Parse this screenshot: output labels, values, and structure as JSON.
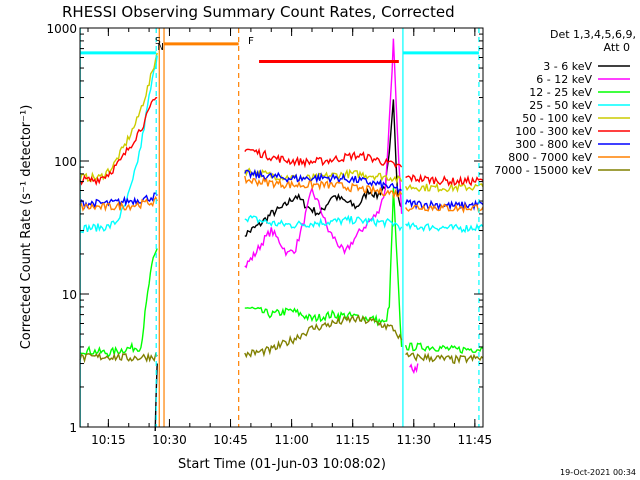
{
  "chart_data": {
    "type": "line",
    "title": "RHESSI Observing Summary Count Rates, Corrected",
    "xlabel": "Start Time (01-Jun-03 10:08:02)",
    "ylabel": "Corrected Count Rate (s⁻¹ detector⁻¹)",
    "y_scale": "log",
    "ylim": [
      1,
      1000
    ],
    "xlim": [
      "10:08:02",
      "11:47:00"
    ],
    "x_ticks": [
      "10:15",
      "10:30",
      "10:45",
      "11:00",
      "11:15",
      "11:30",
      "11:45"
    ],
    "y_ticks": [
      "1",
      "10",
      "100",
      "1000"
    ],
    "grid": false,
    "legend_position": "top-right outside",
    "legend_header": [
      "Det 1,3,4,5,6,9,",
      "Att 0"
    ],
    "footer_date": "19-Oct-2021 00:34",
    "series": [
      {
        "name": "3 - 6 keV",
        "color": "#000000",
        "segments": [
          [
            [
              "10:26:30",
              1.0
            ],
            [
              "10:27:00",
              3.0
            ]
          ],
          [
            [
              "10:48:30",
              28
            ],
            [
              "10:52:00",
              33
            ],
            [
              "10:55:00",
              40
            ],
            [
              "10:58:00",
              45
            ],
            [
              "11:01:00",
              55
            ],
            [
              "11:04:00",
              45
            ],
            [
              "11:07:00",
              40
            ],
            [
              "11:10:00",
              55
            ],
            [
              "11:13:00",
              50
            ],
            [
              "11:16:00",
              45
            ],
            [
              "11:19:00",
              60
            ],
            [
              "11:21:00",
              55
            ],
            [
              "11:23:00",
              65
            ],
            [
              "11:24:00",
              110
            ],
            [
              "11:25:00",
              280
            ],
            [
              "11:26:00",
              60
            ],
            [
              "11:27:00",
              45
            ]
          ]
        ]
      },
      {
        "name": "6 - 12 keV",
        "color": "#ff00ff",
        "segments": [
          [
            [
              "10:48:30",
              16
            ],
            [
              "10:51:00",
              20
            ],
            [
              "10:53:00",
              25
            ],
            [
              "10:55:00",
              30
            ],
            [
              "10:57:00",
              25
            ],
            [
              "10:59:00",
              20
            ],
            [
              "11:01:00",
              22
            ],
            [
              "11:03:00",
              35
            ],
            [
              "11:05:00",
              60
            ],
            [
              "11:07:00",
              45
            ],
            [
              "11:09:00",
              30
            ],
            [
              "11:11:00",
              25
            ],
            [
              "11:13:00",
              20
            ],
            [
              "11:15:00",
              25
            ],
            [
              "11:17:00",
              30
            ],
            [
              "11:19:00",
              35
            ],
            [
              "11:21:00",
              40
            ],
            [
              "11:23:00",
              60
            ],
            [
              "11:24:00",
              200
            ],
            [
              "11:25:00",
              800
            ],
            [
              "11:26:00",
              150
            ],
            [
              "11:27:00",
              40
            ]
          ],
          [
            [
              "11:29:00",
              3.0
            ],
            [
              "11:30:00",
              2.5
            ],
            [
              "11:31:00",
              3.0
            ]
          ]
        ]
      },
      {
        "name": "12 - 25 keV",
        "color": "#00ff00",
        "segments": [
          [
            [
              "10:08:02",
              3.8
            ],
            [
              "10:15:00",
              3.6
            ],
            [
              "10:20:00",
              3.9
            ],
            [
              "10:23:00",
              4.0
            ],
            [
              "10:24:00",
              7
            ],
            [
              "10:25:00",
              12
            ],
            [
              "10:26:00",
              18
            ],
            [
              "10:27:00",
              22
            ]
          ],
          [
            [
              "10:48:30",
              8
            ],
            [
              "10:55:00",
              7
            ],
            [
              "11:00:00",
              7.5
            ],
            [
              "11:05:00",
              6.5
            ],
            [
              "11:10:00",
              7
            ],
            [
              "11:15:00",
              6.8
            ],
            [
              "11:20:00",
              6.5
            ],
            [
              "11:23:00",
              6
            ],
            [
              "11:24:00",
              8
            ],
            [
              "11:25:00",
              60
            ],
            [
              "11:26:00",
              15
            ],
            [
              "11:27:00",
              4
            ]
          ],
          [
            [
              "11:28:00",
              4.0
            ],
            [
              "11:35:00",
              4.0
            ],
            [
              "11:40:00",
              3.8
            ],
            [
              "11:47:00",
              3.9
            ]
          ]
        ]
      },
      {
        "name": "25 - 50 keV",
        "color": "#00ffff",
        "segments": [
          [
            [
              "10:08:02",
              31
            ],
            [
              "10:15:00",
              32
            ],
            [
              "10:17:00",
              35
            ],
            [
              "10:19:00",
              45
            ],
            [
              "10:21:00",
              70
            ],
            [
              "10:23:00",
              130
            ],
            [
              "10:25:00",
              300
            ],
            [
              "10:27:00",
              620
            ]
          ],
          [
            [
              "10:48:30",
              38
            ],
            [
              "10:55:00",
              34
            ],
            [
              "11:00:00",
              33
            ],
            [
              "11:05:00",
              34
            ],
            [
              "11:10:00",
              35
            ],
            [
              "11:15:00",
              36
            ],
            [
              "11:20:00",
              35
            ],
            [
              "11:25:00",
              34
            ],
            [
              "11:27:00",
              32
            ]
          ],
          [
            [
              "11:28:00",
              32
            ],
            [
              "11:35:00",
              32
            ],
            [
              "11:40:00",
              31
            ],
            [
              "11:47:00",
              32
            ]
          ]
        ]
      },
      {
        "name": "50 - 100 keV",
        "color": "#cccc00",
        "segments": [
          [
            [
              "10:08:02",
              75
            ],
            [
              "10:13:00",
              75
            ],
            [
              "10:16:00",
              90
            ],
            [
              "10:19:00",
              130
            ],
            [
              "10:22:00",
              200
            ],
            [
              "10:25:00",
              380
            ],
            [
              "10:27:00",
              650
            ]
          ],
          [
            [
              "10:48:30",
              85
            ],
            [
              "10:55:00",
              78
            ],
            [
              "11:00:00",
              75
            ],
            [
              "11:05:00",
              74
            ],
            [
              "11:10:00",
              78
            ],
            [
              "11:15:00",
              80
            ],
            [
              "11:20:00",
              78
            ],
            [
              "11:25:00",
              75
            ],
            [
              "11:27:00",
              70
            ]
          ],
          [
            [
              "11:28:00",
              64
            ],
            [
              "11:35:00",
              63
            ],
            [
              "11:40:00",
              63
            ],
            [
              "11:47:00",
              64
            ]
          ]
        ]
      },
      {
        "name": "100 - 300 keV",
        "color": "#ff0000",
        "segments": [
          [
            [
              "10:08:02",
              72
            ],
            [
              "10:12:00",
              72
            ],
            [
              "10:15:00",
              80
            ],
            [
              "10:18:00",
              100
            ],
            [
              "10:21:00",
              140
            ],
            [
              "10:24:00",
              200
            ],
            [
              "10:26:00",
              280
            ],
            [
              "10:27:00",
              300
            ]
          ],
          [
            [
              "10:48:30",
              125
            ],
            [
              "10:52:00",
              115
            ],
            [
              "10:56:00",
              105
            ],
            [
              "11:00:00",
              100
            ],
            [
              "11:04:00",
              98
            ],
            [
              "11:08:00",
              100
            ],
            [
              "11:12:00",
              105
            ],
            [
              "11:15:00",
              110
            ],
            [
              "11:18:00",
              108
            ],
            [
              "11:21:00",
              102
            ],
            [
              "11:24:00",
              95
            ],
            [
              "11:27:00",
              90
            ]
          ],
          [
            [
              "11:28:00",
              75
            ],
            [
              "11:35:00",
              72
            ],
            [
              "11:40:00",
              70
            ],
            [
              "11:47:00",
              71
            ]
          ]
        ]
      },
      {
        "name": "300 - 800 keV",
        "color": "#0000ff",
        "segments": [
          [
            [
              "10:08:02",
              48
            ],
            [
              "10:15:00",
              48
            ],
            [
              "10:20:00",
              50
            ],
            [
              "10:24:00",
              52
            ],
            [
              "10:27:00",
              55
            ]
          ],
          [
            [
              "10:48:30",
              80
            ],
            [
              "10:52:00",
              78
            ],
            [
              "10:56:00",
              76
            ],
            [
              "11:00:00",
              74
            ],
            [
              "11:04:00",
              74
            ],
            [
              "11:08:00",
              75
            ],
            [
              "11:12:00",
              74
            ],
            [
              "11:16:00",
              72
            ],
            [
              "11:20:00",
              68
            ],
            [
              "11:24:00",
              64
            ],
            [
              "11:27:00",
              60
            ]
          ],
          [
            [
              "11:28:00",
              48
            ],
            [
              "11:35:00",
              47
            ],
            [
              "11:40:00",
              46
            ],
            [
              "11:47:00",
              47
            ]
          ]
        ]
      },
      {
        "name": "800 - 7000 keV",
        "color": "#ff8000",
        "segments": [
          [
            [
              "10:08:02",
              45
            ],
            [
              "10:15:00",
              45
            ],
            [
              "10:20:00",
              46
            ],
            [
              "10:24:00",
              48
            ],
            [
              "10:27:00",
              50
            ]
          ],
          [
            [
              "10:48:30",
              72
            ],
            [
              "10:52:00",
              70
            ],
            [
              "10:56:00",
              68
            ],
            [
              "11:00:00",
              66
            ],
            [
              "11:04:00",
              66
            ],
            [
              "11:08:00",
              66
            ],
            [
              "11:12:00",
              65
            ],
            [
              "11:16:00",
              62
            ],
            [
              "11:20:00",
              60
            ],
            [
              "11:24:00",
              58
            ],
            [
              "11:27:00",
              56
            ]
          ],
          [
            [
              "11:28:00",
              45
            ],
            [
              "11:35:00",
              45
            ],
            [
              "11:40:00",
              44
            ],
            [
              "11:47:00",
              45
            ]
          ]
        ]
      },
      {
        "name": "7000 - 15000 keV",
        "color": "#808000",
        "segments": [
          [
            [
              "10:08:02",
              3.3
            ],
            [
              "10:15:00",
              3.4
            ],
            [
              "10:20:00",
              3.3
            ],
            [
              "10:27:00",
              3.4
            ]
          ],
          [
            [
              "10:48:30",
              3.5
            ],
            [
              "10:55:00",
              3.8
            ],
            [
              "11:00:00",
              4.5
            ],
            [
              "11:05:00",
              5.5
            ],
            [
              "11:10:00",
              6.0
            ],
            [
              "11:15:00",
              6.5
            ],
            [
              "11:20:00",
              6.2
            ],
            [
              "11:25:00",
              5.5
            ],
            [
              "11:27:00",
              4.5
            ]
          ],
          [
            [
              "11:28:00",
              3.4
            ],
            [
              "11:35:00",
              3.3
            ],
            [
              "11:40:00",
              3.2
            ],
            [
              "11:47:00",
              3.3
            ]
          ]
        ]
      }
    ],
    "annotations": [
      {
        "label": "S",
        "time": "10:27:10",
        "color": "#ff8000"
      },
      {
        "label": "N",
        "time": "10:27:50",
        "color": "#00ffff"
      },
      {
        "label": "F",
        "time": "10:50:00",
        "color": "#ff0000"
      }
    ],
    "vertical_lines": [
      {
        "time": "10:08:05",
        "color": "#00ffff",
        "style": "solid"
      },
      {
        "time": "10:26:45",
        "color": "#00ffff",
        "style": "dashed"
      },
      {
        "time": "10:27:30",
        "color": "#ff8000",
        "style": "solid"
      },
      {
        "time": "10:28:40",
        "color": "#ff8000",
        "style": "solid"
      },
      {
        "time": "10:47:00",
        "color": "#ff8000",
        "style": "dashed"
      },
      {
        "time": "11:27:20",
        "color": "#00ffff",
        "style": "solid"
      },
      {
        "time": "11:46:00",
        "color": "#00ffff",
        "style": "dashed"
      }
    ],
    "horizontal_bars": [
      {
        "from": "10:08:05",
        "to": "10:26:45",
        "y": 650,
        "color": "#00ffff"
      },
      {
        "from": "10:28:40",
        "to": "10:47:00",
        "y": 760,
        "color": "#ff8000"
      },
      {
        "from": "10:52:00",
        "to": "11:26:20",
        "y": 560,
        "color": "#ff0000"
      },
      {
        "from": "11:27:20",
        "to": "11:46:00",
        "y": 650,
        "color": "#00ffff"
      }
    ]
  }
}
